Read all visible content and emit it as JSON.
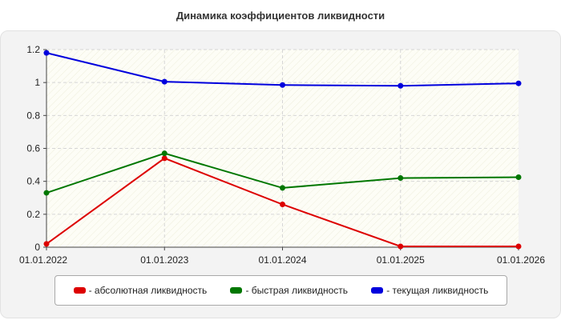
{
  "chart_data": {
    "type": "line",
    "title": "Динамика коэффициентов ликвидности",
    "x": [
      "01.01.2022",
      "01.01.2023",
      "01.01.2024",
      "01.01.2025",
      "01.01.2026"
    ],
    "ylim": [
      0,
      1.2
    ],
    "yticks": [
      "0",
      "0.2",
      "0.4",
      "0.6",
      "0.8",
      "1",
      "1.2"
    ],
    "ytick_values": [
      0,
      0.2,
      0.4,
      0.6,
      0.8,
      1.0,
      1.2
    ],
    "grid": true,
    "legend_position": "bottom",
    "series": [
      {
        "name": "- абсолютная ликвидность",
        "color": "#dd0000",
        "values": [
          0.02,
          0.54,
          0.26,
          0.005,
          0.005
        ]
      },
      {
        "name": "- быстрая ликвидность",
        "color": "#007700",
        "values": [
          0.33,
          0.57,
          0.36,
          0.42,
          0.425
        ]
      },
      {
        "name": "- текущая ликвидность",
        "color": "#0000dd",
        "values": [
          1.18,
          1.005,
          0.985,
          0.98,
          0.995
        ]
      }
    ]
  }
}
